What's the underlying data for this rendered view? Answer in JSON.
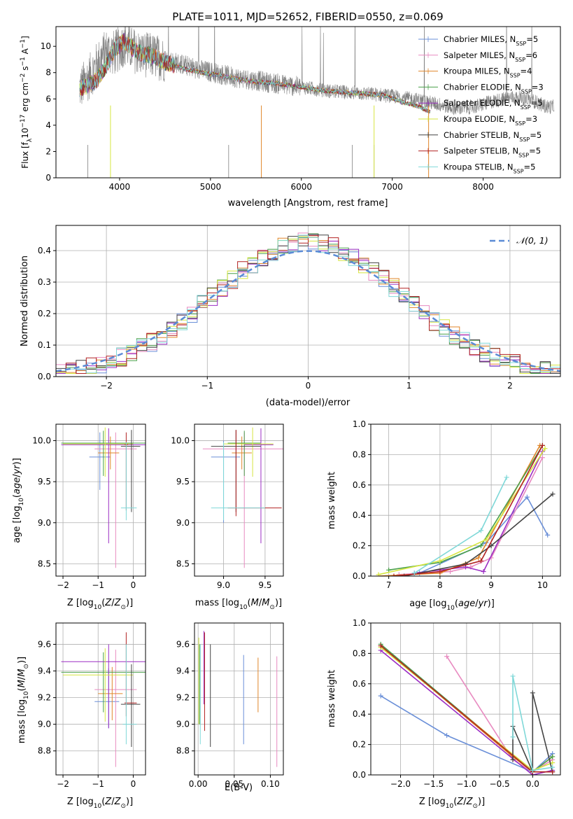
{
  "figure_title": "PLATE=1011, MJD=52652, FIBERID=0550, z=0.069",
  "legend_spectrum": [
    {
      "name": "Chabrier MILES, N_SSP=5",
      "base": "Chabrier MILES, N",
      "sub": "SSP",
      "tail": "=5",
      "color": "#6a8fd8"
    },
    {
      "name": "Salpeter MILES, N_SSP=6",
      "base": "Salpeter MILES, N",
      "sub": "SSP",
      "tail": "=6",
      "color": "#e88ac0"
    },
    {
      "name": "Kroupa MILES, N_SSP=4",
      "base": "Kroupa MILES, N",
      "sub": "SSP",
      "tail": "=4",
      "color": "#e0862a"
    },
    {
      "name": "Chabrier ELODIE, N_SSP=3",
      "base": "Chabrier ELODIE, N",
      "sub": "SSP",
      "tail": "=3",
      "color": "#4aa04a"
    },
    {
      "name": "Salpeter ELODIE, N_SSP=5",
      "base": "Salpeter ELODIE, N",
      "sub": "SSP",
      "tail": "=5",
      "color": "#9b2ec4"
    },
    {
      "name": "Kroupa ELODIE, N_SSP=3",
      "base": "Kroupa ELODIE, N",
      "sub": "SSP",
      "tail": "=3",
      "color": "#d6e640"
    },
    {
      "name": "Chabrier STELIB, N_SSP=5",
      "base": "Chabrier STELIB, N",
      "sub": "SSP",
      "tail": "=5",
      "color": "#444444"
    },
    {
      "name": "Salpeter STELIB, N_SSP=5",
      "base": "Salpeter STELIB, N",
      "sub": "SSP",
      "tail": "=5",
      "color": "#b22222"
    },
    {
      "name": "Kroupa STELIB, N_SSP=5",
      "base": "Kroupa STELIB, N",
      "sub": "SSP",
      "tail": "=5",
      "color": "#7fd8d8"
    }
  ],
  "legend_normal": "𝒩(0, 1)",
  "chart_data": [
    {
      "id": "spectrum",
      "type": "line",
      "xlabel": "wavelength [Angstrom, rest frame]",
      "ylabel": "Flux [f_λ 10^-17 erg cm^-2 s^-1 A^-1]",
      "xlim": [
        3300,
        8850
      ],
      "ylim": [
        0,
        11.5
      ],
      "xticks": [
        4000,
        5000,
        6000,
        7000,
        8000
      ],
      "yticks": [
        0,
        2,
        4,
        6,
        8,
        10
      ],
      "grid": false,
      "data_series": {
        "name": "data",
        "color": "#808080",
        "x": [
          3560,
          3650,
          3750,
          3850,
          3950,
          4050,
          4150,
          4250,
          4350,
          4500,
          4700,
          4900,
          5100,
          5300,
          5500,
          5700,
          5900,
          6100,
          6300,
          6500,
          6700,
          6900,
          7100,
          7300,
          7500,
          7700,
          7900,
          8100,
          8300,
          8500,
          8700
        ],
        "y": [
          6.8,
          7.5,
          8.6,
          9.6,
          9.5,
          10.2,
          9.7,
          9.4,
          9.3,
          9.0,
          8.6,
          8.2,
          7.9,
          7.6,
          7.4,
          7.2,
          7.0,
          6.8,
          6.6,
          6.5,
          6.4,
          6.3,
          6.1,
          5.9,
          5.6,
          5.3,
          5.4,
          5.8,
          6.1,
          6.0,
          5.4
        ]
      },
      "model_range": [
        3560,
        7420
      ],
      "model_x": [
        3560,
        3650,
        3750,
        3850,
        3950,
        4050,
        4150,
        4250,
        4350,
        4500,
        4700,
        4900,
        5100,
        5300,
        5500,
        5700,
        5900,
        6100,
        6300,
        6500,
        6700,
        6900,
        7100,
        7300,
        7420
      ],
      "model_y": [
        6.8,
        7.0,
        7.4,
        8.5,
        9.8,
        10.4,
        9.8,
        9.4,
        9.3,
        8.8,
        8.3,
        8.0,
        7.8,
        7.5,
        7.3,
        7.2,
        7.0,
        6.8,
        6.6,
        6.5,
        6.4,
        6.3,
        5.8,
        5.4,
        5.0
      ],
      "legend_loc": "upper right"
    },
    {
      "id": "residuals",
      "type": "step",
      "xlabel": "(data-model)/error",
      "ylabel": "Normed distribution",
      "xlim": [
        -2.5,
        2.5
      ],
      "ylim": [
        0,
        0.48
      ],
      "xticks": [
        -2,
        -1,
        0,
        1,
        2
      ],
      "yticks": [
        0.0,
        0.1,
        0.2,
        0.3,
        0.4
      ],
      "grid": true,
      "bin_edges_start": -2.5,
      "bin_width": 0.1,
      "reference_curve": {
        "name": "N(0,1)",
        "mean": 0,
        "std": 1,
        "color": "#5b8bd6",
        "style": "dashed"
      },
      "legend_loc": "upper right"
    },
    {
      "id": "age-vs-Z",
      "type": "errorbar",
      "xlabel": "Z [log10(Z/Z_sun)]",
      "ylabel": "age [log10(age/yr)]",
      "xlim": [
        -2.2,
        0.35
      ],
      "ylim": [
        8.35,
        10.2
      ],
      "xticks": [
        -2,
        -1,
        0
      ],
      "yticks": [
        8.5,
        9.0,
        9.5,
        10.0
      ],
      "grid": true,
      "points": [
        {
          "x": -0.95,
          "xerr": [
            0.3,
            0.3
          ],
          "y": 9.8,
          "yerr": [
            0.4,
            0.3
          ],
          "color": "#6a8fd8"
        },
        {
          "x": -0.5,
          "xerr": [
            0.6,
            0.6
          ],
          "y": 9.9,
          "yerr": [
            1.45,
            0.2
          ],
          "color": "#e88ac0"
        },
        {
          "x": -0.65,
          "xerr": [
            0.35,
            0.25
          ],
          "y": 9.85,
          "yerr": [
            0.2,
            0.2
          ],
          "color": "#e0862a"
        },
        {
          "x": -0.85,
          "xerr": [
            1.2,
            1.2
          ],
          "y": 9.97,
          "yerr": [
            0.4,
            0.15
          ],
          "color": "#4aa04a"
        },
        {
          "x": -0.7,
          "xerr": [
            1.35,
            1.05
          ],
          "y": 9.95,
          "yerr": [
            1.2,
            0.2
          ],
          "color": "#9b2ec4"
        },
        {
          "x": -0.8,
          "xerr": [
            1.2,
            0.8
          ],
          "y": 9.96,
          "yerr": [
            0.4,
            0.2
          ],
          "color": "#d6e640"
        },
        {
          "x": -0.05,
          "xerr": [
            0.3,
            0.25
          ],
          "y": 9.93,
          "yerr": [
            0.8,
            0.2
          ],
          "color": "#444444"
        },
        {
          "x": -0.2,
          "xerr": [
            0.05,
            0.05
          ],
          "y": 9.95,
          "yerr": [
            0.8,
            0.15
          ],
          "color": "#b22222"
        },
        {
          "x": -0.2,
          "xerr": [
            0.15,
            0.3
          ],
          "y": 9.18,
          "yerr": [
            0.15,
            0.8
          ],
          "color": "#7fd8d8"
        }
      ]
    },
    {
      "id": "age-vs-mass",
      "type": "errorbar",
      "xlabel": "mass [log10(M/M_sun)]",
      "ylabel": "",
      "xlim": [
        8.65,
        9.72
      ],
      "ylim": [
        8.35,
        10.2
      ],
      "xticks": [
        9.0,
        9.5
      ],
      "yticks": [
        8.5,
        9.0,
        9.5,
        10.0
      ],
      "grid": true,
      "points": [
        {
          "x": 9.0,
          "xerr": [
            0.15,
            0.2
          ],
          "y": 9.8,
          "yerr": [
            0.8,
            0.2
          ],
          "color": "#6a8fd8"
        },
        {
          "x": 9.25,
          "xerr": [
            0.5,
            0.5
          ],
          "y": 9.9,
          "yerr": [
            1.45,
            0.2
          ],
          "color": "#e88ac0"
        },
        {
          "x": 9.22,
          "xerr": [
            0.12,
            0.12
          ],
          "y": 9.85,
          "yerr": [
            0.2,
            0.2
          ],
          "color": "#e0862a"
        },
        {
          "x": 9.25,
          "xerr": [
            0.2,
            0.2
          ],
          "y": 9.97,
          "yerr": [
            0.4,
            0.15
          ],
          "color": "#4aa04a"
        },
        {
          "x": 9.45,
          "xerr": [
            0.2,
            0.15
          ],
          "y": 9.95,
          "yerr": [
            1.2,
            0.2
          ],
          "color": "#9b2ec4"
        },
        {
          "x": 9.35,
          "xerr": [
            0.35,
            0.25
          ],
          "y": 9.96,
          "yerr": [
            0.4,
            0.2
          ],
          "color": "#d6e640"
        },
        {
          "x": 9.15,
          "xerr": [
            0.3,
            0.3
          ],
          "y": 9.93,
          "yerr": [
            0.8,
            0.2
          ],
          "color": "#444444"
        },
        {
          "x": 9.15,
          "xerr": [
            0.1,
            0.55
          ],
          "y": 9.18,
          "yerr": [
            0.1,
            0.95
          ],
          "color": "#b22222"
        },
        {
          "x": 9.0,
          "xerr": [
            0.15,
            0.5
          ],
          "y": 9.18,
          "yerr": [
            0.15,
            0.8
          ],
          "color": "#7fd8d8"
        }
      ]
    },
    {
      "id": "massweight-vs-age",
      "type": "line",
      "xlabel": "age [log10(age/yr)]",
      "ylabel": "mass weight",
      "xlim": [
        6.65,
        10.35
      ],
      "ylim": [
        0,
        1.0
      ],
      "xticks": [
        7,
        8,
        9,
        10
      ],
      "yticks": [
        0.0,
        0.2,
        0.4,
        0.6,
        0.8,
        1.0
      ],
      "grid": true,
      "series": [
        {
          "color": "#6a8fd8",
          "x": [
            7.6,
            8.9,
            9.7,
            10.1
          ],
          "y": [
            0.02,
            0.22,
            0.52,
            0.27
          ]
        },
        {
          "color": "#e88ac0",
          "x": [
            7.2,
            8.2,
            8.6,
            9.0,
            10.0
          ],
          "y": [
            0.01,
            0.03,
            0.06,
            0.12,
            0.78
          ]
        },
        {
          "color": "#e0862a",
          "x": [
            6.8,
            8.0,
            8.75,
            9.95
          ],
          "y": [
            0.0,
            0.02,
            0.12,
            0.86
          ]
        },
        {
          "color": "#4aa04a",
          "x": [
            7.0,
            8.0,
            8.8,
            10.0
          ],
          "y": [
            0.04,
            0.09,
            0.2,
            0.86
          ]
        },
        {
          "color": "#9b2ec4",
          "x": [
            7.5,
            8.5,
            8.85,
            10.0
          ],
          "y": [
            0.02,
            0.06,
            0.03,
            0.82
          ]
        },
        {
          "color": "#d6e640",
          "x": [
            6.8,
            8.0,
            8.9,
            10.05
          ],
          "y": [
            0.01,
            0.1,
            0.24,
            0.84
          ]
        },
        {
          "color": "#444444",
          "x": [
            7.3,
            8.5,
            9.0,
            10.2
          ],
          "y": [
            0.0,
            0.08,
            0.2,
            0.54
          ]
        },
        {
          "color": "#b22222",
          "x": [
            7.1,
            8.0,
            8.8,
            10.0
          ],
          "y": [
            0.0,
            0.03,
            0.1,
            0.86
          ]
        },
        {
          "color": "#7fd8d8",
          "x": [
            7.5,
            8.8,
            9.3
          ],
          "y": [
            0.02,
            0.3,
            0.65
          ]
        }
      ]
    },
    {
      "id": "mass-vs-Z",
      "type": "errorbar",
      "xlabel": "Z [log10(Z/Z_sun)]",
      "ylabel": "mass [log10(M/M_sun)]",
      "xlim": [
        -2.2,
        0.35
      ],
      "ylim": [
        8.62,
        9.76
      ],
      "xticks": [
        -2,
        -1,
        0
      ],
      "yticks": [
        8.8,
        9.0,
        9.2,
        9.4,
        9.6
      ],
      "grid": true,
      "points": [
        {
          "x": -0.7,
          "xerr": [
            0.4,
            0.3
          ],
          "y": 9.17,
          "yerr": [
            0.2,
            0.25
          ],
          "color": "#6a8fd8"
        },
        {
          "x": -0.5,
          "xerr": [
            0.6,
            0.6
          ],
          "y": 9.26,
          "yerr": [
            0.58,
            0.3
          ],
          "color": "#e88ac0"
        },
        {
          "x": -0.6,
          "xerr": [
            0.4,
            0.3
          ],
          "y": 9.23,
          "yerr": [
            0.2,
            0.2
          ],
          "color": "#e0862a"
        },
        {
          "x": -0.85,
          "xerr": [
            1.2,
            1.2
          ],
          "y": 9.39,
          "yerr": [
            0.3,
            0.15
          ],
          "color": "#4aa04a"
        },
        {
          "x": -0.7,
          "xerr": [
            1.35,
            1.05
          ],
          "y": 9.47,
          "yerr": [
            0.5,
            0.13
          ],
          "color": "#9b2ec4"
        },
        {
          "x": -0.8,
          "xerr": [
            1.2,
            0.8
          ],
          "y": 9.37,
          "yerr": [
            0.35,
            0.2
          ],
          "color": "#d6e640"
        },
        {
          "x": -0.05,
          "xerr": [
            0.3,
            0.25
          ],
          "y": 9.15,
          "yerr": [
            0.32,
            0.3
          ],
          "color": "#444444"
        },
        {
          "x": -0.2,
          "xerr": [
            0.05,
            0.3
          ],
          "y": 9.16,
          "yerr": [
            0.1,
            0.53
          ],
          "color": "#b22222"
        },
        {
          "x": -0.2,
          "xerr": [
            0.1,
            0.3
          ],
          "y": 9.0,
          "yerr": [
            0.15,
            0.6
          ],
          "color": "#7fd8d8"
        }
      ]
    },
    {
      "id": "mass-vs-EBV",
      "type": "errorbar",
      "xlabel": "E(B-V)",
      "ylabel": "",
      "xlim": [
        -0.005,
        0.118
      ],
      "ylim": [
        8.62,
        9.76
      ],
      "xticks": [
        0.0,
        0.05,
        0.1
      ],
      "yticks": [
        8.8,
        9.0,
        9.2,
        9.4,
        9.6
      ],
      "grid": true,
      "points": [
        {
          "x": 0.063,
          "y": 9.2,
          "yerr": [
            0.35,
            0.32
          ],
          "color": "#6a8fd8"
        },
        {
          "x": 0.109,
          "y": 9.1,
          "yerr": [
            0.42,
            0.41
          ],
          "color": "#e88ac0"
        },
        {
          "x": 0.083,
          "y": 9.3,
          "yerr": [
            0.21,
            0.2
          ],
          "color": "#e0862a"
        },
        {
          "x": 0.002,
          "y": 9.3,
          "yerr": [
            0.3,
            0.3
          ],
          "color": "#4aa04a"
        },
        {
          "x": 0.008,
          "y": 9.5,
          "yerr": [
            0.35,
            0.2
          ],
          "color": "#9b2ec4"
        },
        {
          "x": 0.001,
          "y": 9.3,
          "yerr": [
            0.3,
            0.35
          ],
          "color": "#d6e640"
        },
        {
          "x": 0.017,
          "y": 9.2,
          "yerr": [
            0.37,
            0.4
          ],
          "color": "#444444"
        },
        {
          "x": 0.009,
          "y": 9.3,
          "yerr": [
            0.35,
            0.39
          ],
          "color": "#b22222"
        },
        {
          "x": 0.003,
          "y": 9.2,
          "yerr": [
            0.35,
            0.4
          ],
          "color": "#7fd8d8"
        }
      ]
    },
    {
      "id": "massweight-vs-Z",
      "type": "line",
      "xlabel": "Z [log10(Z/Z_sun)]",
      "ylabel": "mass weight",
      "xlim": [
        -2.45,
        0.42
      ],
      "ylim": [
        0,
        1.0
      ],
      "xticks": [
        -2.0,
        -1.5,
        -1.0,
        -0.5,
        0.0
      ],
      "yticks": [
        0.0,
        0.2,
        0.4,
        0.6,
        0.8,
        1.0
      ],
      "grid": true,
      "series": [
        {
          "color": "#6a8fd8",
          "x": [
            -2.3,
            -1.3,
            0.0,
            0.3
          ],
          "y": [
            0.52,
            0.26,
            0.02,
            0.14
          ]
        },
        {
          "color": "#e88ac0",
          "x": [
            -1.3,
            -0.3,
            0.0,
            0.3
          ],
          "y": [
            0.78,
            0.1,
            0.02,
            0.1
          ]
        },
        {
          "color": "#e0862a",
          "x": [
            -2.3,
            -0.3,
            0.0,
            0.3
          ],
          "y": [
            0.85,
            0.12,
            0.02,
            0.12
          ]
        },
        {
          "color": "#4aa04a",
          "x": [
            -2.3,
            0.0,
            0.3
          ],
          "y": [
            0.86,
            0.02,
            0.12
          ]
        },
        {
          "color": "#9b2ec4",
          "x": [
            -2.3,
            0.0,
            0.3
          ],
          "y": [
            0.82,
            0.0,
            0.03
          ]
        },
        {
          "color": "#d6e640",
          "x": [
            -2.3,
            0.0,
            0.3
          ],
          "y": [
            0.84,
            0.03,
            0.08
          ]
        },
        {
          "color": "#444444",
          "x": [
            -0.3,
            -0.3,
            0.0,
            0.0,
            0.3
          ],
          "y": [
            0.1,
            0.32,
            0.02,
            0.54,
            0.02
          ]
        },
        {
          "color": "#b22222",
          "x": [
            -2.3,
            0.0,
            0.3
          ],
          "y": [
            0.85,
            0.02,
            0.02
          ]
        },
        {
          "color": "#7fd8d8",
          "x": [
            -0.3,
            -0.3,
            0.0,
            0.3
          ],
          "y": [
            0.25,
            0.65,
            0.03,
            0.05
          ]
        }
      ]
    }
  ]
}
